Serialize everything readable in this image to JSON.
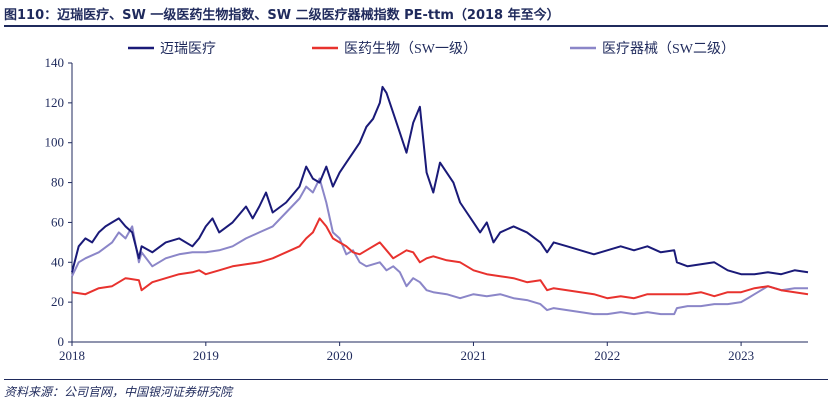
{
  "figure_title": "图110：迈瑞医疗、SW 一级医药生物指数、SW 二级医疗器械指数 PE-ttm（2018 年至今）",
  "source_note": "资料来源：公司官网，中国银河证券研究院",
  "chart_data": {
    "type": "line",
    "title": "",
    "xlabel": "",
    "ylabel": "",
    "ylim": [
      0,
      140
    ],
    "yticks": [
      0,
      20,
      40,
      60,
      80,
      100,
      120,
      140
    ],
    "xlim": [
      2018.0,
      2023.5
    ],
    "xticks": [
      "2018",
      "2019",
      "2020",
      "2021",
      "2022",
      "2023"
    ],
    "grid": false,
    "legend_position": "top",
    "series": [
      {
        "name": "迈瑞医疗",
        "color": "#1a1a78",
        "x": [
          2018.0,
          2018.05,
          2018.1,
          2018.15,
          2018.2,
          2018.25,
          2018.3,
          2018.35,
          2018.4,
          2018.45,
          2018.5,
          2018.52,
          2018.6,
          2018.7,
          2018.8,
          2018.9,
          2018.95,
          2019.0,
          2019.05,
          2019.1,
          2019.2,
          2019.3,
          2019.35,
          2019.4,
          2019.45,
          2019.5,
          2019.6,
          2019.7,
          2019.75,
          2019.8,
          2019.85,
          2019.9,
          2019.95,
          2020.0,
          2020.05,
          2020.1,
          2020.15,
          2020.2,
          2020.25,
          2020.3,
          2020.32,
          2020.35,
          2020.4,
          2020.45,
          2020.5,
          2020.55,
          2020.6,
          2020.65,
          2020.7,
          2020.75,
          2020.8,
          2020.85,
          2020.9,
          2020.95,
          2021.0,
          2021.05,
          2021.1,
          2021.15,
          2021.2,
          2021.3,
          2021.4,
          2021.5,
          2021.55,
          2021.6,
          2021.7,
          2021.8,
          2021.9,
          2022.0,
          2022.1,
          2022.2,
          2022.3,
          2022.4,
          2022.5,
          2022.52,
          2022.6,
          2022.7,
          2022.8,
          2022.9,
          2023.0,
          2023.1,
          2023.2,
          2023.3,
          2023.4,
          2023.5
        ],
        "values": [
          35,
          48,
          52,
          50,
          55,
          58,
          60,
          62,
          58,
          55,
          42,
          48,
          45,
          50,
          52,
          48,
          52,
          58,
          62,
          55,
          60,
          68,
          62,
          68,
          75,
          65,
          70,
          78,
          88,
          82,
          80,
          88,
          78,
          85,
          90,
          95,
          100,
          108,
          112,
          120,
          128,
          125,
          115,
          105,
          95,
          110,
          118,
          85,
          75,
          90,
          85,
          80,
          70,
          65,
          60,
          55,
          60,
          50,
          55,
          58,
          55,
          50,
          45,
          50,
          48,
          46,
          44,
          46,
          48,
          46,
          48,
          45,
          46,
          40,
          38,
          39,
          40,
          36,
          34,
          34,
          35,
          34,
          36,
          35
        ]
      },
      {
        "name": "医药生物（SW一级）",
        "color": "#e8322e",
        "x": [
          2018.0,
          2018.1,
          2018.2,
          2018.3,
          2018.4,
          2018.5,
          2018.52,
          2018.6,
          2018.7,
          2018.8,
          2018.9,
          2018.95,
          2019.0,
          2019.1,
          2019.2,
          2019.3,
          2019.4,
          2019.5,
          2019.6,
          2019.7,
          2019.75,
          2019.8,
          2019.85,
          2019.9,
          2019.95,
          2020.0,
          2020.05,
          2020.1,
          2020.15,
          2020.2,
          2020.3,
          2020.35,
          2020.4,
          2020.45,
          2020.5,
          2020.55,
          2020.6,
          2020.65,
          2020.7,
          2020.8,
          2020.9,
          2021.0,
          2021.1,
          2021.2,
          2021.3,
          2021.4,
          2021.5,
          2021.55,
          2021.6,
          2021.7,
          2021.8,
          2021.9,
          2022.0,
          2022.1,
          2022.2,
          2022.3,
          2022.4,
          2022.5,
          2022.6,
          2022.7,
          2022.8,
          2022.9,
          2023.0,
          2023.1,
          2023.2,
          2023.3,
          2023.4,
          2023.5
        ],
        "values": [
          25,
          24,
          27,
          28,
          32,
          31,
          26,
          30,
          32,
          34,
          35,
          36,
          34,
          36,
          38,
          39,
          40,
          42,
          45,
          48,
          52,
          55,
          62,
          58,
          52,
          50,
          48,
          45,
          44,
          46,
          50,
          46,
          42,
          44,
          46,
          45,
          40,
          42,
          43,
          41,
          40,
          36,
          34,
          33,
          32,
          30,
          31,
          26,
          27,
          26,
          25,
          24,
          22,
          23,
          22,
          24,
          24,
          24,
          24,
          25,
          23,
          25,
          25,
          27,
          28,
          26,
          25,
          24
        ]
      },
      {
        "name": "医疗器械（SW二级）",
        "color": "#8b86c8",
        "x": [
          2018.0,
          2018.05,
          2018.1,
          2018.2,
          2018.3,
          2018.35,
          2018.4,
          2018.45,
          2018.5,
          2018.52,
          2018.6,
          2018.7,
          2018.8,
          2018.9,
          2019.0,
          2019.1,
          2019.2,
          2019.3,
          2019.4,
          2019.5,
          2019.6,
          2019.7,
          2019.75,
          2019.8,
          2019.85,
          2019.9,
          2019.95,
          2020.0,
          2020.05,
          2020.1,
          2020.15,
          2020.2,
          2020.3,
          2020.35,
          2020.4,
          2020.45,
          2020.5,
          2020.55,
          2020.6,
          2020.65,
          2020.7,
          2020.8,
          2020.9,
          2021.0,
          2021.1,
          2021.2,
          2021.3,
          2021.4,
          2021.5,
          2021.55,
          2021.6,
          2021.7,
          2021.8,
          2021.9,
          2022.0,
          2022.1,
          2022.2,
          2022.3,
          2022.4,
          2022.5,
          2022.52,
          2022.6,
          2022.7,
          2022.8,
          2022.9,
          2023.0,
          2023.05,
          2023.1,
          2023.2,
          2023.3,
          2023.4,
          2023.5
        ],
        "values": [
          33,
          40,
          42,
          45,
          50,
          55,
          52,
          58,
          40,
          45,
          38,
          42,
          44,
          45,
          45,
          46,
          48,
          52,
          55,
          58,
          65,
          72,
          78,
          75,
          82,
          70,
          55,
          52,
          44,
          46,
          40,
          38,
          40,
          36,
          38,
          35,
          28,
          32,
          30,
          26,
          25,
          24,
          22,
          24,
          23,
          24,
          22,
          21,
          19,
          16,
          17,
          16,
          15,
          14,
          14,
          15,
          14,
          15,
          14,
          14,
          17,
          18,
          18,
          19,
          19,
          20,
          22,
          24,
          28,
          26,
          27,
          27
        ]
      }
    ]
  }
}
